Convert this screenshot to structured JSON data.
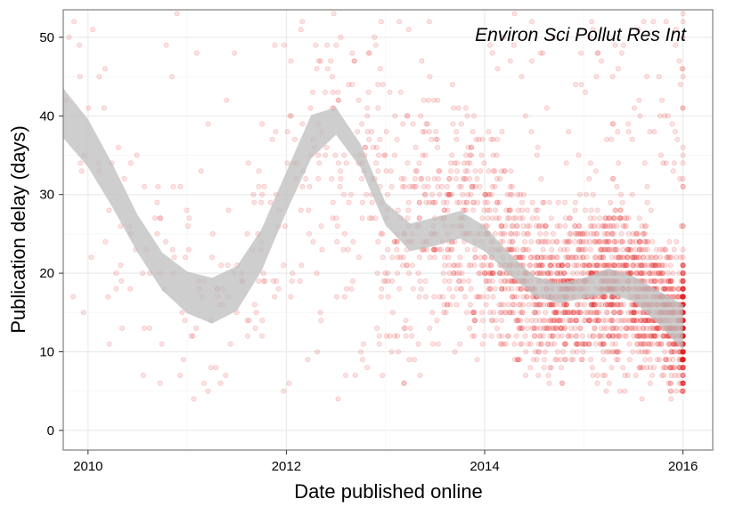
{
  "chart_data": {
    "type": "scatter",
    "title": "",
    "annotation": "Environ Sci Pollut Res Int",
    "xlabel": "Date published online",
    "ylabel": "Publication delay (days)",
    "xlim": [
      2009.75,
      2016.3
    ],
    "ylim": [
      -2.5,
      53.5
    ],
    "x_ticks": [
      2010,
      2012,
      2014,
      2016
    ],
    "x_tick_labels": [
      "2010",
      "2012",
      "2014",
      "2016"
    ],
    "y_ticks": [
      0,
      10,
      20,
      30,
      40,
      50
    ],
    "y_tick_labels": [
      "0",
      "10",
      "20",
      "30",
      "40",
      "50"
    ],
    "grid": true,
    "legend": "none",
    "colors": {
      "points": "#e41a1c",
      "band": "#bdbdbd",
      "panel_border": "#7f7f7f",
      "grid_major": "#ebebeb",
      "grid_minor": "#f5f5f5"
    },
    "point_opacity": 0.12,
    "smooth_band": {
      "x": [
        2009.75,
        2010.0,
        2010.25,
        2010.5,
        2010.75,
        2011.0,
        2011.25,
        2011.5,
        2011.75,
        2012.0,
        2012.25,
        2012.5,
        2012.75,
        2013.0,
        2013.25,
        2013.5,
        2013.75,
        2014.0,
        2014.25,
        2014.5,
        2014.75,
        2015.0,
        2015.25,
        2015.5,
        2015.75,
        2016.0
      ],
      "lower": [
        37.2,
        33.5,
        28.3,
        22.6,
        17.8,
        14.9,
        13.6,
        15.2,
        20.3,
        27.8,
        34.6,
        37.6,
        33.4,
        26.1,
        22.8,
        23.5,
        24.4,
        22.8,
        19.8,
        17.1,
        16.2,
        16.8,
        17.4,
        16.4,
        13.6,
        10.2
      ],
      "upper": [
        43.5,
        39.6,
        33.8,
        27.4,
        22.6,
        20.2,
        19.4,
        20.9,
        25.6,
        32.9,
        40.1,
        41.1,
        36.4,
        29.0,
        26.3,
        27.1,
        27.9,
        26.0,
        22.5,
        19.6,
        18.7,
        19.4,
        20.6,
        19.6,
        17.8,
        16.0
      ]
    },
    "density": {
      "x_bins": [
        2009.75,
        2010.0,
        2010.25,
        2010.5,
        2010.75,
        2011.0,
        2011.25,
        2011.5,
        2011.75,
        2012.0,
        2012.25,
        2012.5,
        2012.75,
        2013.0,
        2013.25,
        2013.5,
        2013.75,
        2014.0,
        2014.25,
        2014.5,
        2014.75,
        2015.0,
        2015.25,
        2015.5,
        2015.75,
        2016.0
      ],
      "points_per_bin": [
        12,
        14,
        14,
        16,
        16,
        18,
        20,
        22,
        24,
        30,
        38,
        48,
        60,
        70,
        80,
        95,
        110,
        140,
        170,
        200,
        220,
        240,
        260,
        280,
        300,
        240
      ]
    }
  }
}
